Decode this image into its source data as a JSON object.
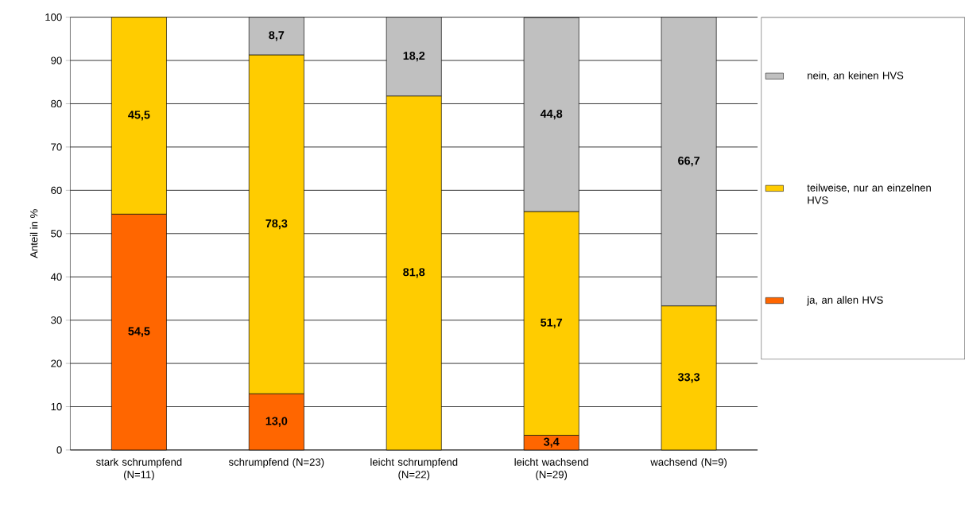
{
  "chart_data": {
    "type": "bar",
    "stacked": true,
    "ylabel": "Anteil in %",
    "categories": [
      "stark schrumpfend (N=11)",
      "schrumpfend (N=23)",
      "leicht schrumpfend (N=22)",
      "leicht wachsend (N=29)",
      "wachsend (N=9)"
    ],
    "series": [
      {
        "name": "ja, an allen HVS",
        "color": "#ff6600",
        "values": [
          54.5,
          13.0,
          null,
          3.4,
          null
        ],
        "value_labels": [
          "54,5",
          "13,0",
          null,
          "3,4",
          null
        ]
      },
      {
        "name": "teilweise, nur an einzelnen HVS",
        "color": "#ffcc00",
        "values": [
          45.5,
          78.3,
          81.8,
          51.7,
          33.3
        ],
        "value_labels": [
          "45,5",
          "78,3",
          "81,8",
          "51,7",
          "33,3"
        ]
      },
      {
        "name": "nein, an keinen HVS",
        "color": "#c0c0c0",
        "values": [
          null,
          8.7,
          18.2,
          44.8,
          66.7
        ],
        "value_labels": [
          null,
          "8,7",
          "18,2",
          "44,8",
          "66,7"
        ]
      }
    ],
    "ylim": [
      0,
      100
    ],
    "yticks": [
      0,
      10,
      20,
      30,
      40,
      50,
      60,
      70,
      80,
      90,
      100
    ],
    "grid": "y",
    "legend": "right"
  }
}
